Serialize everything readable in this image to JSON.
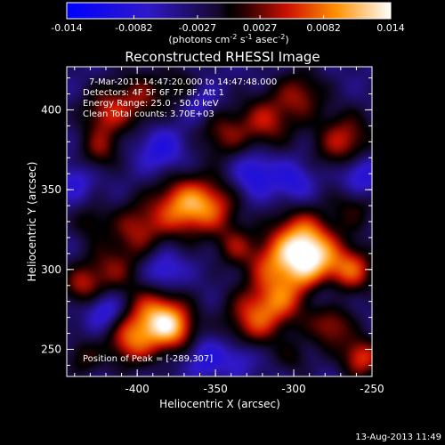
{
  "chart_data": {
    "type": "heatmap",
    "title": "Reconstructed RHESSI Image",
    "xlabel": "Heliocentric X (arcsec)",
    "ylabel": "Heliocentric Y (arcsec)",
    "xlim": [
      -445,
      -250
    ],
    "ylim": [
      233,
      427
    ],
    "xticks": [
      -400,
      -350,
      -300,
      -250
    ],
    "yticks": [
      250,
      300,
      350,
      400
    ],
    "xtick_labels": [
      "-400",
      "-350",
      "-300",
      "-250"
    ],
    "ytick_labels": [
      "250",
      "300",
      "350",
      "400"
    ],
    "colorbar": {
      "range": [
        -0.014,
        0.014
      ],
      "ticks": [
        -0.014,
        -0.0082,
        -0.0027,
        0.0027,
        0.0082,
        0.014
      ],
      "tick_labels": [
        "-0.014",
        "-0.0082",
        "-0.0027",
        "0.0027",
        "0.0082",
        "0.014"
      ],
      "label_main": "(photons cm",
      "label_exp1": "-2",
      "label_mid1": " s",
      "label_exp2": "-1",
      "label_mid2": " asec",
      "label_exp3": "-2",
      "label_end": ")"
    },
    "info_lines": [
      "7-Mar-2011 14:47:20.000 to 14:47:48.000",
      "Detectors: 4F 5F 6F 7F 8F, Att 1",
      "Energy Range: 25.0 - 50.0 keV",
      "Clean     Total counts: 3.70E+03"
    ],
    "peak_label": "Position of Peak = [-289,307]",
    "peak_position": [
      -289,
      307
    ],
    "blobs": [
      {
        "x": -289,
        "y": 306,
        "r": 14,
        "v": 0.0145
      },
      {
        "x": -297,
        "y": 321,
        "r": 13,
        "v": 0.0085
      },
      {
        "x": -315,
        "y": 303,
        "r": 12,
        "v": 0.0075
      },
      {
        "x": -372,
        "y": 340,
        "r": 13,
        "v": 0.0115
      },
      {
        "x": -352,
        "y": 340,
        "r": 12,
        "v": 0.0085
      },
      {
        "x": -400,
        "y": 326,
        "r": 12,
        "v": 0.0075
      },
      {
        "x": -388,
        "y": 270,
        "r": 13,
        "v": 0.0125
      },
      {
        "x": -405,
        "y": 255,
        "r": 11,
        "v": 0.009
      },
      {
        "x": -376,
        "y": 263,
        "r": 10,
        "v": 0.008
      },
      {
        "x": -325,
        "y": 270,
        "r": 13,
        "v": 0.01
      },
      {
        "x": -307,
        "y": 281,
        "r": 11,
        "v": 0.007
      },
      {
        "x": -417,
        "y": 300,
        "r": 12,
        "v": 0.0065
      },
      {
        "x": -436,
        "y": 290,
        "r": 9,
        "v": 0.007
      },
      {
        "x": -420,
        "y": 398,
        "r": 11,
        "v": 0.008
      },
      {
        "x": -398,
        "y": 408,
        "r": 12,
        "v": 0.0065
      },
      {
        "x": -424,
        "y": 375,
        "r": 9,
        "v": 0.006
      },
      {
        "x": -345,
        "y": 385,
        "r": 11,
        "v": 0.0065
      },
      {
        "x": -318,
        "y": 393,
        "r": 12,
        "v": 0.008
      },
      {
        "x": -296,
        "y": 410,
        "r": 11,
        "v": 0.007
      },
      {
        "x": -268,
        "y": 380,
        "r": 13,
        "v": 0.009
      },
      {
        "x": -262,
        "y": 340,
        "r": 10,
        "v": 0.005
      },
      {
        "x": -262,
        "y": 300,
        "r": 10,
        "v": 0.009
      },
      {
        "x": -277,
        "y": 265,
        "r": 10,
        "v": 0.008
      },
      {
        "x": -257,
        "y": 245,
        "r": 9,
        "v": 0.01
      },
      {
        "x": -300,
        "y": 245,
        "r": 8,
        "v": 0.0035
      },
      {
        "x": -435,
        "y": 245,
        "r": 8,
        "v": 0.005
      },
      {
        "x": -338,
        "y": 315,
        "r": 9,
        "v": 0.006
      },
      {
        "x": -430,
        "y": 330,
        "r": 8,
        "v": 0.0045
      },
      {
        "x": -372,
        "y": 415,
        "r": 9,
        "v": 0.004
      },
      {
        "x": -357,
        "y": 245,
        "r": -9,
        "v": -0.005
      },
      {
        "x": -420,
        "y": 275,
        "r": -9,
        "v": -0.006
      },
      {
        "x": -383,
        "y": 299,
        "r": -9,
        "v": -0.0055
      },
      {
        "x": -325,
        "y": 360,
        "r": -10,
        "v": -0.006
      },
      {
        "x": -385,
        "y": 375,
        "r": -10,
        "v": -0.0055
      },
      {
        "x": -300,
        "y": 355,
        "r": -9,
        "v": -0.005
      },
      {
        "x": -258,
        "y": 360,
        "r": -10,
        "v": -0.007
      },
      {
        "x": -335,
        "y": 245,
        "r": -8,
        "v": -0.004
      },
      {
        "x": -280,
        "y": 285,
        "r": -8,
        "v": -0.0045
      },
      {
        "x": -360,
        "y": 405,
        "r": -8,
        "v": -0.004
      },
      {
        "x": -440,
        "y": 355,
        "r": -8,
        "v": -0.004
      }
    ]
  },
  "timestamp": "13-Aug-2013 11:49"
}
